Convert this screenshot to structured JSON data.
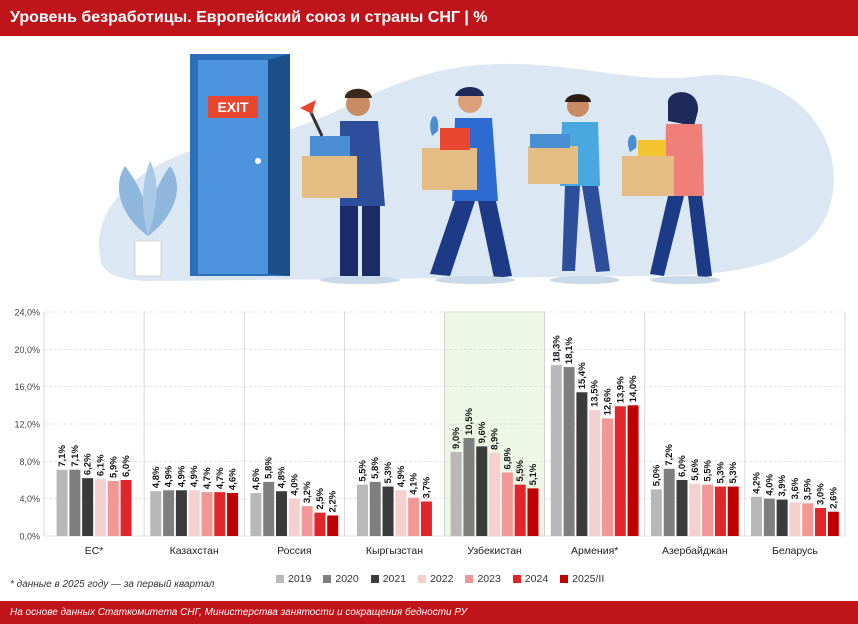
{
  "header": {
    "title": "Уровень безработицы. Европейский союз и страны СНГ | %"
  },
  "illustration": {
    "exit_sign": "EXIT"
  },
  "footnote": "* данные в 2025 году — за первый квартал",
  "footer": "На основе данных Статкомитета СНГ, Министерства занятости и сокращения бедности РУ",
  "colors": {
    "brand_red": "#c0141b",
    "highlight_group": "#eef6e6",
    "series": [
      "#b8b8b8",
      "#7f7f7f",
      "#3b3b3b",
      "#f6d0cf",
      "#f29796",
      "#e0252b",
      "#c00000"
    ]
  },
  "chart_data": {
    "type": "bar",
    "categories": [
      "ЕС*",
      "Казахстан",
      "Россия",
      "Кыргызстан",
      "Узбекистан",
      "Армения*",
      "Азербайджан",
      "Беларусь"
    ],
    "highlighted_category": "Узбекистан",
    "series": [
      {
        "name": "2019",
        "values": [
          7.1,
          4.8,
          4.6,
          5.5,
          9.0,
          18.3,
          5.0,
          4.2
        ],
        "labels": [
          "7,1%",
          "4,8%",
          "4,6%",
          "5,5%",
          "9,0%",
          "18,3%",
          "5,0%",
          "4,2%"
        ]
      },
      {
        "name": "2020",
        "values": [
          7.1,
          4.9,
          5.8,
          5.8,
          10.5,
          18.1,
          7.2,
          4.0
        ],
        "labels": [
          "7,1%",
          "4,9%",
          "5,8%",
          "5,8%",
          "10,5%",
          "18,1%",
          "7,2%",
          "4,0%"
        ]
      },
      {
        "name": "2021",
        "values": [
          6.2,
          4.9,
          4.8,
          5.3,
          9.6,
          15.4,
          6.0,
          3.9
        ],
        "labels": [
          "6,2%",
          "4,9%",
          "4,8%",
          "5,3%",
          "9,6%",
          "15,4%",
          "6,0%",
          "3,9%"
        ]
      },
      {
        "name": "2022",
        "values": [
          6.1,
          4.9,
          4.0,
          4.9,
          8.9,
          13.5,
          5.6,
          3.6
        ],
        "labels": [
          "6,1%",
          "4,9%",
          "4,0%",
          "4,9%",
          "8,9%",
          "13,5%",
          "5,6%",
          "3,6%"
        ]
      },
      {
        "name": "2023",
        "values": [
          5.9,
          4.7,
          3.2,
          4.1,
          6.8,
          12.6,
          5.5,
          3.5
        ],
        "labels": [
          "5,9%",
          "4,7%",
          "3,2%",
          "4,1%",
          "6,8%",
          "12,6%",
          "5,5%",
          "3,5%"
        ]
      },
      {
        "name": "2024",
        "values": [
          6.0,
          4.7,
          2.5,
          3.7,
          5.5,
          13.9,
          5.3,
          3.0
        ],
        "labels": [
          "6,0%",
          "4,7%",
          "2,5%",
          "3,7%",
          "5,5%",
          "13,9%",
          "5,3%",
          "3,0%"
        ]
      },
      {
        "name": "2025/II",
        "values": [
          null,
          4.6,
          2.2,
          null,
          5.1,
          14.0,
          5.3,
          2.6
        ],
        "labels": [
          null,
          "4,6%",
          "2,2%",
          null,
          "5,1%",
          "14,0%",
          "5,3%",
          "2,6%"
        ]
      }
    ],
    "ylim": [
      0,
      24
    ],
    "yticks": [
      "0,0%",
      "4,0%",
      "8,0%",
      "12,0%",
      "16,0%",
      "20,0%",
      "24,0%"
    ],
    "grid": true,
    "legend_position": "bottom",
    "title": "",
    "xlabel": "",
    "ylabel": ""
  }
}
